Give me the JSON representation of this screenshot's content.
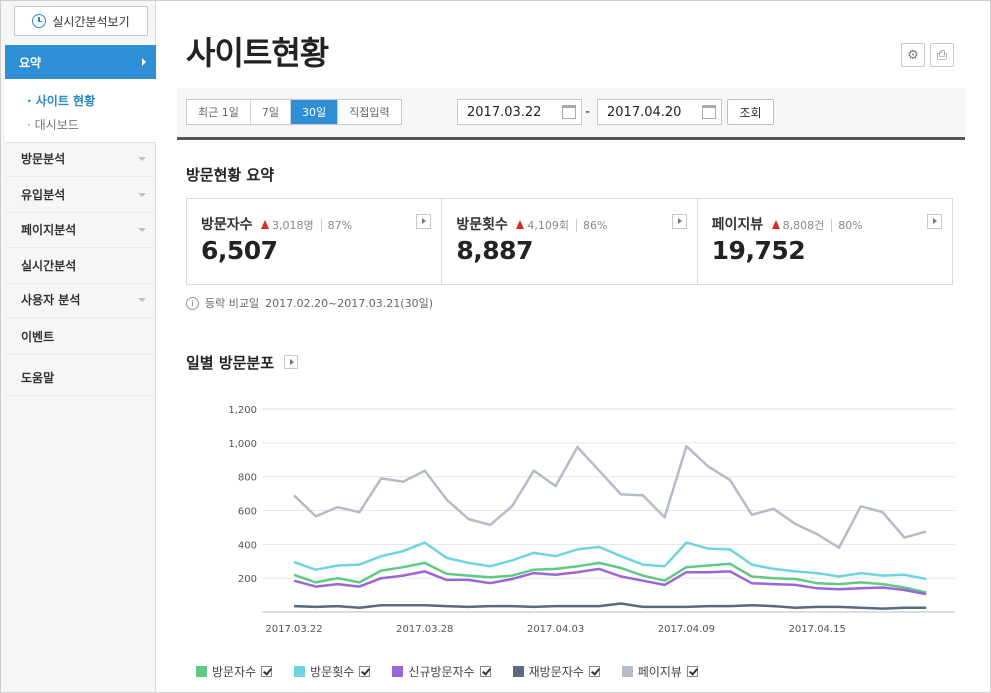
{
  "sidebar": {
    "realtime_button": "실시간분석보기",
    "active_menu": "요약",
    "submenu": [
      {
        "label": "· 사이트 현황"
      },
      {
        "label": "· 대시보드"
      }
    ],
    "items": [
      {
        "label": "방문분석",
        "has_dropdown": true
      },
      {
        "label": "유입분석",
        "has_dropdown": true
      },
      {
        "label": "페이지분석",
        "has_dropdown": true
      },
      {
        "label": "실시간분석",
        "has_dropdown": false
      },
      {
        "label": "사용자 분석",
        "has_dropdown": true
      },
      {
        "label": "이벤트",
        "has_dropdown": false
      },
      {
        "label": "도움말",
        "has_dropdown": false
      }
    ]
  },
  "header": {
    "title": "사이트현황"
  },
  "date_filter": {
    "periods": [
      "최근 1일",
      "7일",
      "30일",
      "직접입력"
    ],
    "selected": "30일",
    "start_date": "2017.03.22",
    "end_date": "2017.04.20",
    "dash": "-",
    "search_label": "조회"
  },
  "summary": {
    "title": "방문현황 요약",
    "cards": [
      {
        "label": "방문자수",
        "delta": "3,018명",
        "pct": "87%",
        "value": "6,507"
      },
      {
        "label": "방문횟수",
        "delta": "4,109회",
        "pct": "86%",
        "value": "8,887"
      },
      {
        "label": "페이지뷰",
        "delta": "8,808건",
        "pct": "80%",
        "value": "19,752"
      }
    ],
    "compare_label": "등락 비교일",
    "compare_range": "2017.02.20~2017.03.21(30일)"
  },
  "chart_section": {
    "title": "일별 방문분포"
  },
  "chart_data": {
    "type": "line",
    "x": [
      "2017.03.22",
      "2017.03.23",
      "2017.03.24",
      "2017.03.25",
      "2017.03.26",
      "2017.03.27",
      "2017.03.28",
      "2017.03.29",
      "2017.03.30",
      "2017.03.31",
      "2017.04.01",
      "2017.04.02",
      "2017.04.03",
      "2017.04.04",
      "2017.04.05",
      "2017.04.06",
      "2017.04.07",
      "2017.04.08",
      "2017.04.09",
      "2017.04.10",
      "2017.04.11",
      "2017.04.12",
      "2017.04.13",
      "2017.04.14",
      "2017.04.15",
      "2017.04.16",
      "2017.04.17",
      "2017.04.18",
      "2017.04.19",
      "2017.04.20"
    ],
    "xticks": [
      "2017.03.22",
      "2017.03.28",
      "2017.04.03",
      "2017.04.09",
      "2017.04.15"
    ],
    "yticks": [
      "1,200",
      "1,000",
      "800",
      "600",
      "400",
      "200"
    ],
    "ylim": [
      0,
      1200
    ],
    "grid": true,
    "legend_position": "bottom-left",
    "series": [
      {
        "name": "방문자수",
        "color": "#5fc987",
        "values": [
          220,
          175,
          200,
          175,
          245,
          265,
          290,
          225,
          215,
          205,
          215,
          250,
          255,
          270,
          290,
          260,
          215,
          185,
          265,
          275,
          285,
          210,
          200,
          195,
          170,
          165,
          175,
          165,
          145,
          115
        ]
      },
      {
        "name": "방문횟수",
        "color": "#6fd4e0",
        "values": [
          295,
          250,
          275,
          280,
          330,
          360,
          410,
          320,
          290,
          270,
          305,
          350,
          330,
          370,
          385,
          330,
          280,
          270,
          410,
          375,
          370,
          280,
          255,
          240,
          230,
          210,
          230,
          215,
          220,
          195
        ]
      },
      {
        "name": "신규방문자수",
        "color": "#9b66d6",
        "values": [
          185,
          150,
          165,
          150,
          200,
          215,
          240,
          190,
          190,
          170,
          195,
          230,
          220,
          235,
          255,
          210,
          185,
          160,
          235,
          235,
          240,
          170,
          165,
          160,
          140,
          135,
          140,
          145,
          130,
          105
        ]
      },
      {
        "name": "재방문자수",
        "color": "#5a6a80",
        "values": [
          35,
          30,
          35,
          25,
          40,
          40,
          40,
          35,
          30,
          35,
          35,
          30,
          35,
          35,
          35,
          50,
          30,
          30,
          30,
          35,
          35,
          40,
          35,
          25,
          30,
          30,
          25,
          20,
          25,
          25
        ]
      },
      {
        "name": "페이지뷰",
        "color": "#b5bcc8",
        "values": [
          690,
          565,
          620,
          590,
          790,
          770,
          835,
          665,
          550,
          515,
          625,
          835,
          745,
          975,
          835,
          695,
          690,
          560,
          980,
          860,
          780,
          575,
          610,
          520,
          460,
          380,
          625,
          590,
          440,
          475
        ]
      }
    ]
  }
}
